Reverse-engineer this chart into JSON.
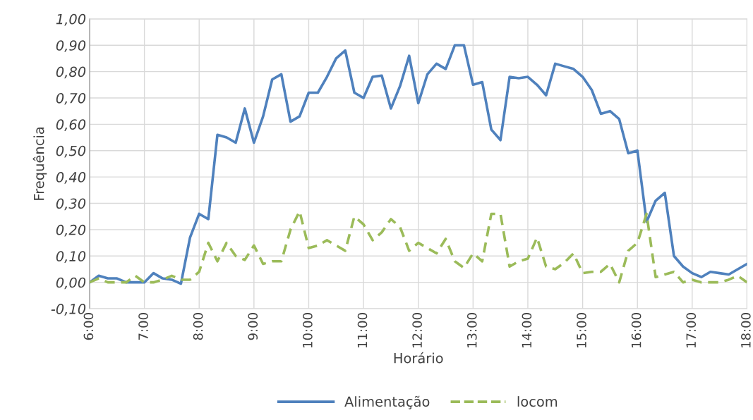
{
  "chart_data": {
    "type": "line",
    "xlabel": "Horário",
    "ylabel": "Frequência",
    "x": [
      6,
      6.167,
      6.333,
      6.5,
      6.667,
      6.833,
      7,
      7.167,
      7.333,
      7.5,
      7.667,
      7.833,
      8,
      8.167,
      8.333,
      8.5,
      8.667,
      8.833,
      9,
      9.167,
      9.333,
      9.5,
      9.667,
      9.833,
      10,
      10.167,
      10.333,
      10.5,
      10.667,
      10.833,
      11,
      11.167,
      11.333,
      11.5,
      11.667,
      11.833,
      12,
      12.167,
      12.333,
      12.5,
      12.667,
      12.833,
      13,
      13.167,
      13.333,
      13.5,
      13.667,
      13.833,
      14,
      14.167,
      14.333,
      14.5,
      14.667,
      14.833,
      15,
      15.167,
      15.333,
      15.5,
      15.667,
      15.833,
      16,
      16.167,
      16.333,
      16.5,
      16.667,
      16.833,
      17,
      17.167,
      17.333,
      17.5,
      17.667,
      17.833,
      18
    ],
    "series": [
      {
        "name": "Alimentação",
        "color": "#4f81bd",
        "line_style": "solid",
        "values": [
          0,
          0.025,
          0.015,
          0.015,
          0,
          0,
          0,
          0.035,
          0.015,
          0.01,
          -0.005,
          0.17,
          0.26,
          0.24,
          0.56,
          0.55,
          0.53,
          0.66,
          0.53,
          0.63,
          0.77,
          0.79,
          0.61,
          0.63,
          0.72,
          0.72,
          0.78,
          0.85,
          0.88,
          0.72,
          0.7,
          0.78,
          0.785,
          0.66,
          0.745,
          0.86,
          0.68,
          0.79,
          0.83,
          0.81,
          0.9,
          0.9,
          0.75,
          0.76,
          0.58,
          0.54,
          0.78,
          0.775,
          0.78,
          0.75,
          0.71,
          0.83,
          0.82,
          0.81,
          0.78,
          0.73,
          0.64,
          0.65,
          0.62,
          0.49,
          0.5,
          0.23,
          0.31,
          0.34,
          0.1,
          0.06,
          0.035,
          0.02,
          0.04,
          0.035,
          0.03,
          0.05,
          0.07
        ]
      },
      {
        "name": "locom",
        "color": "#9bbb59",
        "line_style": "dashed",
        "values": [
          0,
          0.015,
          0,
          0,
          0,
          0.025,
          0,
          0,
          0.01,
          0.025,
          0.01,
          0.01,
          0.04,
          0.15,
          0.08,
          0.15,
          0.1,
          0.085,
          0.14,
          0.07,
          0.08,
          0.08,
          0.2,
          0.27,
          0.13,
          0.14,
          0.16,
          0.14,
          0.12,
          0.25,
          0.22,
          0.16,
          0.19,
          0.24,
          0.21,
          0.12,
          0.15,
          0.13,
          0.11,
          0.165,
          0.08,
          0.055,
          0.11,
          0.08,
          0.26,
          0.26,
          0.06,
          0.08,
          0.09,
          0.17,
          0.06,
          0.05,
          0.075,
          0.11,
          0.035,
          0.04,
          0.04,
          0.07,
          0,
          0.12,
          0.15,
          0.26,
          0.02,
          0.03,
          0.04,
          0,
          0.01,
          0,
          0,
          0,
          0.01,
          0.025,
          0
        ]
      }
    ],
    "xlim": [
      6,
      18
    ],
    "xticks": [
      {
        "value": 6,
        "label": "6:00"
      },
      {
        "value": 7,
        "label": "7:00"
      },
      {
        "value": 8,
        "label": "8:00"
      },
      {
        "value": 9,
        "label": "9:00"
      },
      {
        "value": 10,
        "label": "10:00"
      },
      {
        "value": 11,
        "label": "11:00"
      },
      {
        "value": 12,
        "label": "12:00"
      },
      {
        "value": 13,
        "label": "13:00"
      },
      {
        "value": 14,
        "label": "14:00"
      },
      {
        "value": 15,
        "label": "15:00"
      },
      {
        "value": 16,
        "label": "16:00"
      },
      {
        "value": 17,
        "label": "17:00"
      },
      {
        "value": 18,
        "label": "18:00"
      }
    ],
    "ylim": [
      -0.1,
      1.0
    ],
    "yticks": [
      {
        "value": -0.1,
        "label": "-0,10"
      },
      {
        "value": 0,
        "label": "0,00"
      },
      {
        "value": 0.1,
        "label": "0,10"
      },
      {
        "value": 0.2,
        "label": "0,20"
      },
      {
        "value": 0.3,
        "label": "0,30"
      },
      {
        "value": 0.4,
        "label": "0,40"
      },
      {
        "value": 0.5,
        "label": "0,50"
      },
      {
        "value": 0.6,
        "label": "0,60"
      },
      {
        "value": 0.7,
        "label": "0,70"
      },
      {
        "value": 0.8,
        "label": "0,80"
      },
      {
        "value": 0.9,
        "label": "0,90"
      },
      {
        "value": 1.0,
        "label": "1,00"
      }
    ],
    "grid": true,
    "legend": "bottom",
    "marker": "none"
  }
}
